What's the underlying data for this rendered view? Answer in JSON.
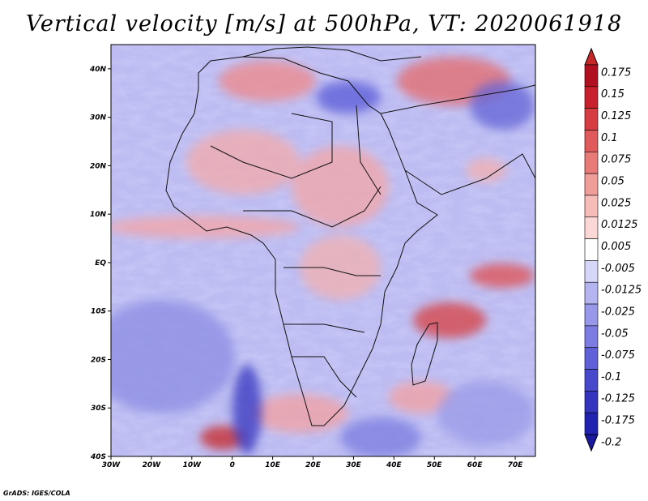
{
  "title": "Vertical velocity [m/s] at 500hPa, VT: 2020061918",
  "credit": "GrADS: IGES/COLA",
  "chart_data": {
    "type": "heatmap",
    "variable": "Vertical velocity",
    "units": "m/s",
    "level": "500hPa",
    "valid_time": "2020061918",
    "lon_range": [
      -30,
      75
    ],
    "lat_range": [
      -40,
      45
    ],
    "lon_ticks": [
      "30W",
      "20W",
      "10W",
      "0",
      "10E",
      "20E",
      "30E",
      "40E",
      "50E",
      "60E",
      "70E"
    ],
    "lat_ticks": [
      "40N",
      "30N",
      "20N",
      "10N",
      "EQ",
      "10S",
      "20S",
      "30S",
      "40S"
    ],
    "colorbar_labels": [
      "0.175",
      "0.15",
      "0.125",
      "0.1",
      "0.075",
      "0.05",
      "0.025",
      "0.0125",
      "0.005",
      "-0.005",
      "-0.0125",
      "-0.025",
      "-0.05",
      "-0.075",
      "-0.1",
      "-0.125",
      "-0.175",
      "-0.2"
    ],
    "colorbar_colors": [
      "#b01020",
      "#c8202c",
      "#d63c42",
      "#e05a5c",
      "#e87a78",
      "#f09c98",
      "#f6bcb8",
      "#fbd8d6",
      "#ffffff",
      "#d6d6f8",
      "#b4b4f0",
      "#9898ea",
      "#7c7ce2",
      "#6060d8",
      "#4848cc",
      "#3434be",
      "#2222b0"
    ],
    "colorbar_ends": {
      "top": "#c62828",
      "bottom": "#1a1a9e"
    }
  }
}
